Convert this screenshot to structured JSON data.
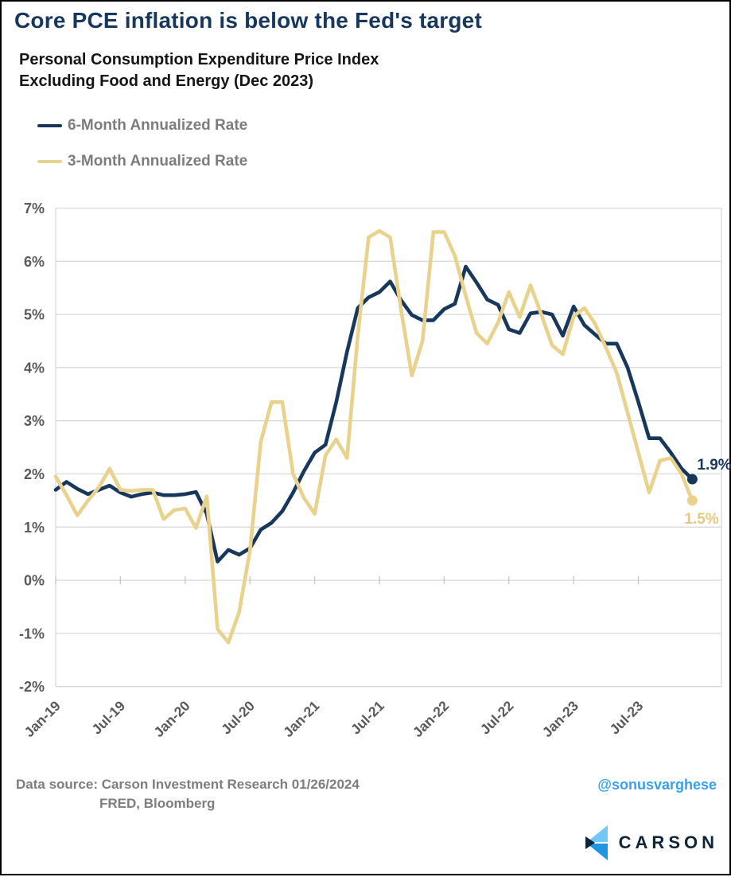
{
  "header": {
    "title": "Core PCE inflation is below the Fed's target",
    "subtitle_line1": "Personal Consumption Expenditure Price Index",
    "subtitle_line2": "Excluding Food and Energy (Dec 2023)"
  },
  "legend": {
    "item1": "6-Month Annualized Rate",
    "item2": "3-Month Annualized Rate"
  },
  "colors": {
    "navy": "#17375d",
    "yellow": "#e9d28c",
    "yellow_label": "#e3c87e",
    "gridline": "#d9d9d9",
    "axis_text": "#595959",
    "gray_text": "#7d7d7d",
    "handle_blue": "#36a1ee",
    "logo_navy": "#0e2439",
    "logo_light_blue": "#72c7f5",
    "logo_mid_blue": "#2096e0"
  },
  "chart_data": {
    "type": "line",
    "title": "Core PCE inflation is below the Fed's target",
    "xlabel": "",
    "ylabel": "",
    "ylim": [
      -2,
      7
    ],
    "grid": true,
    "legend_position": "top-left",
    "y_ticks": {
      "labels": [
        "7%",
        "6%",
        "5%",
        "4%",
        "3%",
        "2%",
        "1%",
        "0%",
        "-1%",
        "-2%"
      ],
      "values": [
        7,
        6,
        5,
        4,
        3,
        2,
        1,
        0,
        -1,
        -2
      ]
    },
    "x_ticks": {
      "labels": [
        "Jan-19",
        "Jul-19",
        "Jan-20",
        "Jul-20",
        "Jan-21",
        "Jul-21",
        "Jan-22",
        "Jul-22",
        "Jan-23",
        "Jul-23"
      ],
      "month_index": [
        0,
        6,
        12,
        18,
        24,
        30,
        36,
        42,
        48,
        54
      ]
    },
    "x": [
      "Jan-19",
      "Feb-19",
      "Mar-19",
      "Apr-19",
      "May-19",
      "Jun-19",
      "Jul-19",
      "Aug-19",
      "Sep-19",
      "Oct-19",
      "Nov-19",
      "Dec-19",
      "Jan-20",
      "Feb-20",
      "Mar-20",
      "Apr-20",
      "May-20",
      "Jun-20",
      "Jul-20",
      "Aug-20",
      "Sep-20",
      "Oct-20",
      "Nov-20",
      "Dec-20",
      "Jan-21",
      "Feb-21",
      "Mar-21",
      "Apr-21",
      "May-21",
      "Jun-21",
      "Jul-21",
      "Aug-21",
      "Sep-21",
      "Oct-21",
      "Nov-21",
      "Dec-21",
      "Jan-22",
      "Feb-22",
      "Mar-22",
      "Apr-22",
      "May-22",
      "Jun-22",
      "Jul-22",
      "Aug-22",
      "Sep-22",
      "Oct-22",
      "Nov-22",
      "Dec-22",
      "Jan-23",
      "Feb-23",
      "Mar-23",
      "Apr-23",
      "May-23",
      "Jun-23",
      "Jul-23",
      "Aug-23",
      "Sep-23",
      "Oct-23",
      "Nov-23",
      "Dec-23"
    ],
    "series": [
      {
        "name": "6-Month Annualized Rate",
        "color": "#17375d",
        "end_label": "1.9%",
        "values": [
          1.7,
          1.85,
          1.72,
          1.62,
          1.7,
          1.78,
          1.65,
          1.57,
          1.62,
          1.65,
          1.6,
          1.6,
          1.62,
          1.66,
          1.25,
          0.35,
          0.57,
          0.48,
          0.6,
          0.95,
          1.08,
          1.3,
          1.65,
          2.05,
          2.4,
          2.55,
          3.35,
          4.3,
          5.12,
          5.32,
          5.42,
          5.62,
          5.27,
          4.99,
          4.89,
          4.89,
          5.1,
          5.2,
          5.9,
          5.6,
          5.28,
          5.18,
          4.72,
          4.65,
          5.02,
          5.05,
          5.0,
          4.6,
          5.15,
          4.8,
          4.62,
          4.45,
          4.45,
          4.0,
          3.35,
          2.67,
          2.67,
          2.4,
          2.1,
          1.9
        ]
      },
      {
        "name": "3-Month Annualized Rate",
        "color": "#e9d28c",
        "end_label": "1.5%",
        "values": [
          1.95,
          1.6,
          1.22,
          1.5,
          1.75,
          2.1,
          1.7,
          1.68,
          1.7,
          1.7,
          1.15,
          1.32,
          1.35,
          0.98,
          1.58,
          -0.92,
          -1.17,
          -0.6,
          0.55,
          2.6,
          3.35,
          3.35,
          2.0,
          1.55,
          1.25,
          2.35,
          2.65,
          2.3,
          4.6,
          6.45,
          6.57,
          6.45,
          5.1,
          3.85,
          4.5,
          6.55,
          6.55,
          6.1,
          5.35,
          4.65,
          4.45,
          4.85,
          5.42,
          4.95,
          5.55,
          5.0,
          4.42,
          4.25,
          4.97,
          5.12,
          4.82,
          4.37,
          3.9,
          3.15,
          2.4,
          1.65,
          2.25,
          2.3,
          2.0,
          1.5
        ]
      }
    ]
  },
  "footer": {
    "source_line1": "Data source: Carson Investment Research  01/26/2024",
    "source_line2": "FRED, Bloomberg",
    "handle": "@sonusvarghese",
    "brand": "CARSON"
  }
}
